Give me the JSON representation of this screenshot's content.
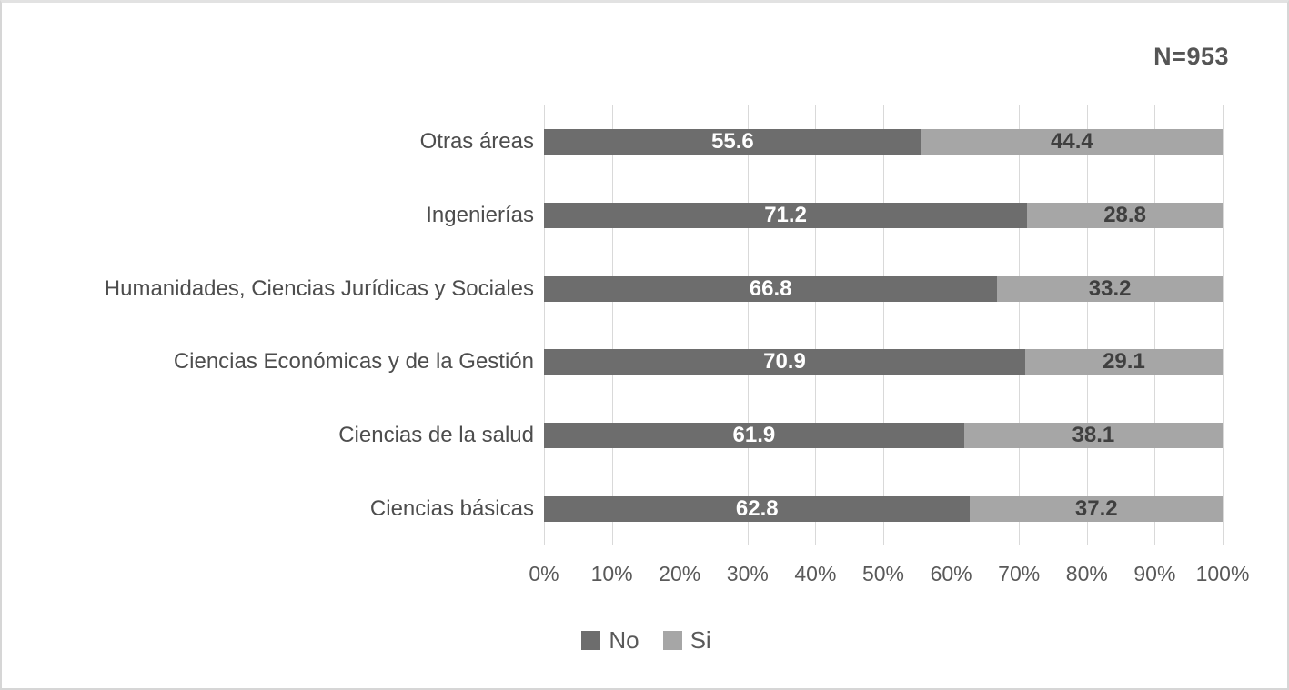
{
  "annotation": "N=953",
  "chart_data": {
    "type": "bar",
    "orientation": "horizontal",
    "stacked": true,
    "title": "",
    "xlabel": "",
    "ylabel": "",
    "annotation": "N=953",
    "grid": "vertical",
    "legend_position": "bottom",
    "xlim": [
      0,
      100
    ],
    "x_ticks": [
      "0%",
      "10%",
      "20%",
      "30%",
      "40%",
      "50%",
      "60%",
      "70%",
      "80%",
      "90%",
      "100%"
    ],
    "categories": [
      "Otras áreas",
      "Ingenierías",
      "Humanidades, Ciencias Jurídicas y Sociales",
      "Ciencias Económicas y de la Gestión",
      "Ciencias de la salud",
      "Ciencias básicas"
    ],
    "series": [
      {
        "name": "No",
        "color": "#6d6d6d",
        "label_color": "#ffffff",
        "values": [
          55.6,
          71.2,
          66.8,
          70.9,
          61.9,
          62.8
        ]
      },
      {
        "name": "Si",
        "color": "#a6a6a6",
        "label_color": "#3f3f3f",
        "values": [
          44.4,
          28.8,
          33.2,
          29.1,
          38.1,
          37.2
        ]
      }
    ],
    "colors": {
      "gridline": "#d9d9d9",
      "axis_text": "#595959",
      "category_text": "#4d4d4d",
      "annotation_text": "#555555"
    }
  }
}
